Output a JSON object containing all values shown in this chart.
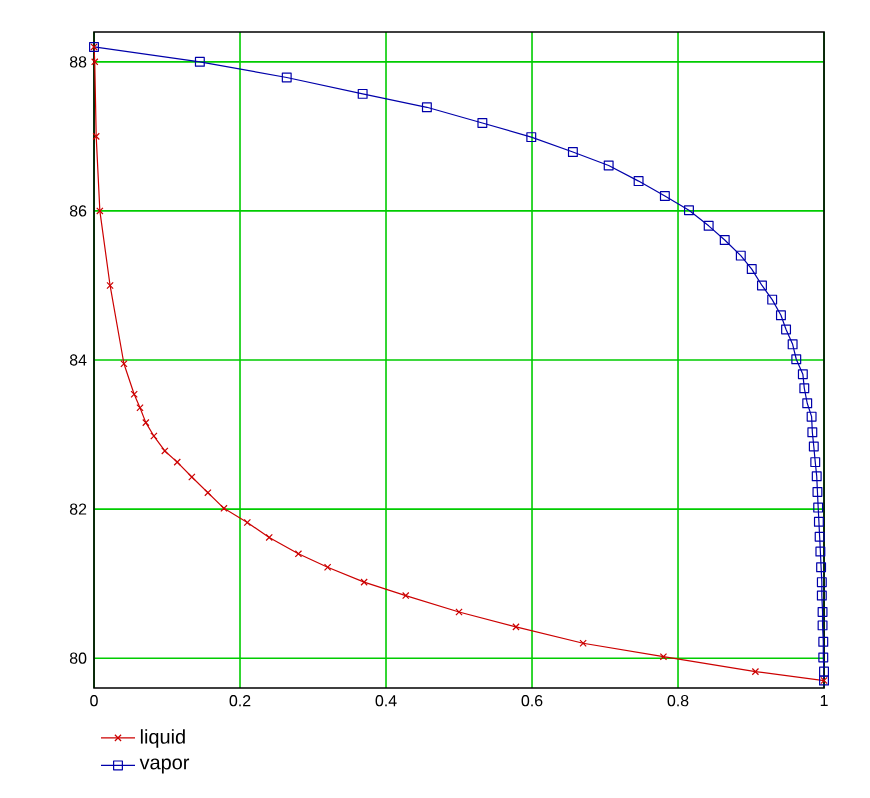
{
  "chart_data": {
    "type": "line",
    "xlim": [
      0,
      1
    ],
    "ylim": [
      79.6,
      88.4
    ],
    "xticks": [
      0,
      0.2,
      0.4,
      0.6,
      0.8,
      1
    ],
    "yticks": [
      80,
      82,
      84,
      86,
      88
    ],
    "grid": true,
    "legend": "bottom left",
    "line_style": "solid",
    "series": [
      {
        "name": "liquid",
        "color": "#cc0000",
        "marker": "cross",
        "x": [
          0,
          0.001,
          0.003,
          0.008,
          0.022,
          0.041,
          0.055,
          0.063,
          0.071,
          0.082,
          0.097,
          0.114,
          0.134,
          0.156,
          0.178,
          0.21,
          0.24,
          0.28,
          0.32,
          0.37,
          0.427,
          0.5,
          0.578,
          0.67,
          0.78,
          0.906,
          1.0
        ],
        "values": [
          88.2,
          88.0,
          87.0,
          86.0,
          85.0,
          83.95,
          83.54,
          83.36,
          83.16,
          82.98,
          82.78,
          82.63,
          82.43,
          82.22,
          82.01,
          81.82,
          81.62,
          81.4,
          81.22,
          81.02,
          80.84,
          80.62,
          80.42,
          80.2,
          80.02,
          79.82,
          79.7
        ]
      },
      {
        "name": "vapor",
        "color": "#0000aa",
        "marker": "square",
        "x": [
          0,
          0.145,
          0.264,
          0.368,
          0.456,
          0.532,
          0.599,
          0.656,
          0.705,
          0.746,
          0.782,
          0.815,
          0.842,
          0.864,
          0.886,
          0.901,
          0.915,
          0.929,
          0.941,
          0.948,
          0.957,
          0.962,
          0.971,
          0.973,
          0.977,
          0.983,
          0.984,
          0.986,
          0.988,
          0.99,
          0.991,
          0.992,
          0.993,
          0.994,
          0.995,
          0.996,
          0.997,
          0.997,
          0.998,
          0.998,
          0.999,
          0.999,
          1.0,
          1.0
        ],
        "values": [
          88.2,
          88.0,
          87.79,
          87.57,
          87.39,
          87.18,
          86.99,
          86.79,
          86.61,
          86.4,
          86.2,
          86.01,
          85.8,
          85.61,
          85.4,
          85.22,
          85.0,
          84.81,
          84.6,
          84.41,
          84.21,
          84.01,
          83.81,
          83.62,
          83.42,
          83.24,
          83.03,
          82.84,
          82.63,
          82.44,
          82.23,
          82.02,
          81.83,
          81.63,
          81.43,
          81.22,
          81.02,
          80.84,
          80.62,
          80.44,
          80.22,
          80.01,
          79.82,
          79.7
        ]
      }
    ]
  }
}
